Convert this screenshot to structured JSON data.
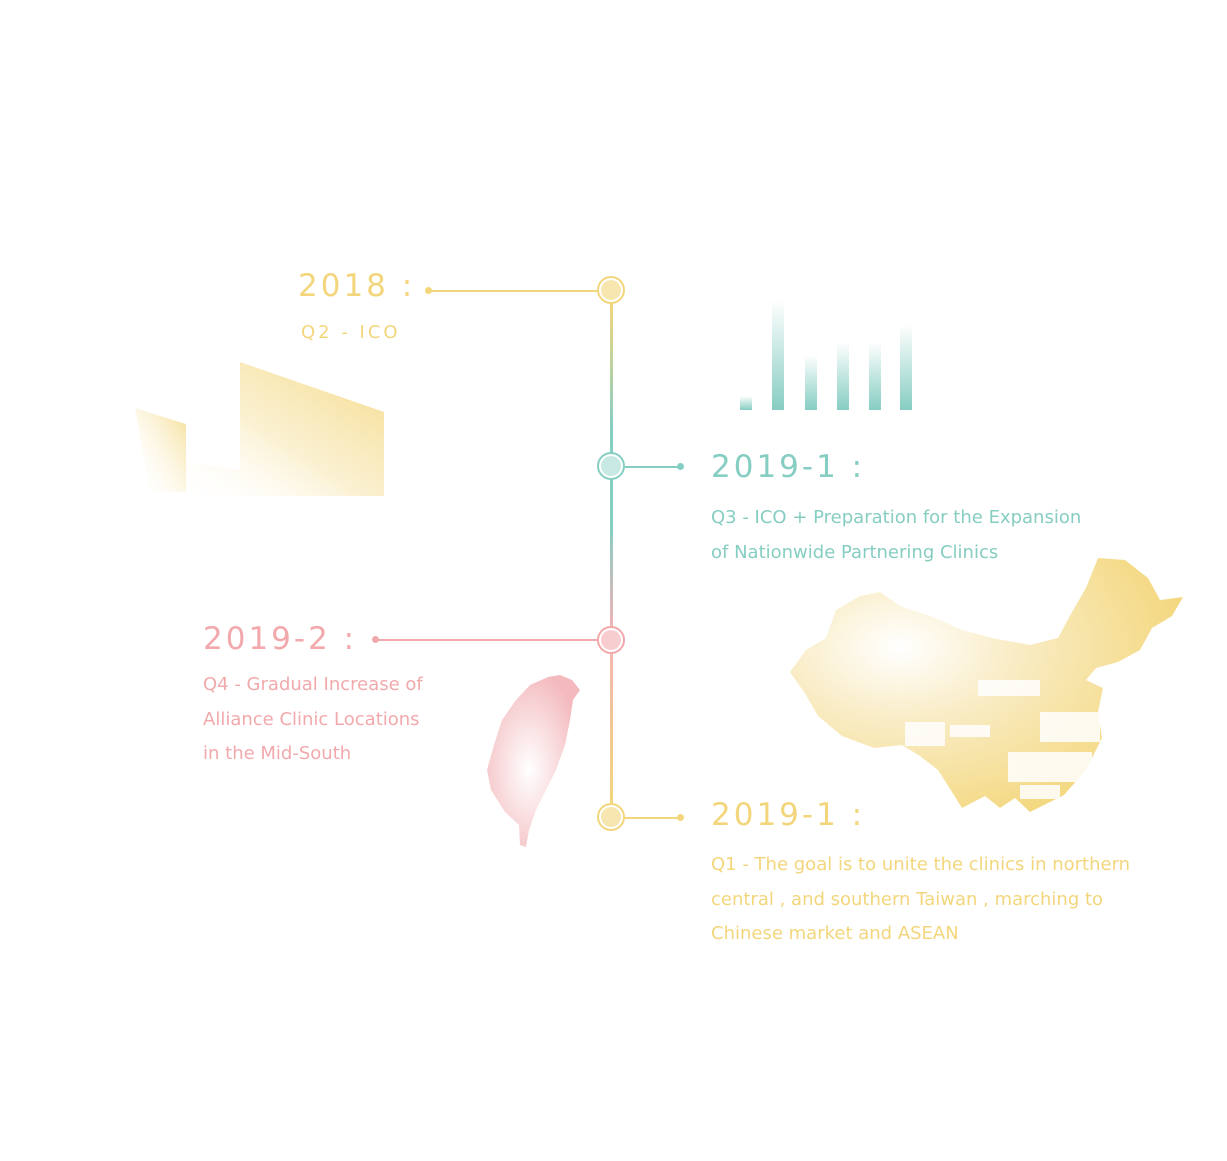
{
  "colors": {
    "yellow": "#f3d67c",
    "yellow_fill": "#f7e6b0",
    "teal": "#86cdc2",
    "teal_fill": "#c8e8e3",
    "pink": "#f2a9ac",
    "pink_fill": "#f7cdd0"
  },
  "timeline": {
    "milestone_2018": {
      "year": "2018 :",
      "lines": [
        "Q2 - ICO"
      ]
    },
    "milestone_2019_1_q3": {
      "year": "2019-1 :",
      "lines": [
        "Q3  -  ICO + Preparation for the Expansion",
        "of Nationwide Partnering Clinics"
      ]
    },
    "milestone_2019_2": {
      "year": "2019-2 :",
      "lines": [
        "Q4  -  Gradual Increase of",
        "Alliance Clinic Locations",
        "in the Mid-South"
      ]
    },
    "milestone_2019_1_q1": {
      "year": "2019-1 :",
      "lines": [
        "Q1  -  The goal is to unite the clinics in northern",
        "central , and southern Taiwan , marching to",
        "Chinese market and ASEAN"
      ]
    }
  }
}
